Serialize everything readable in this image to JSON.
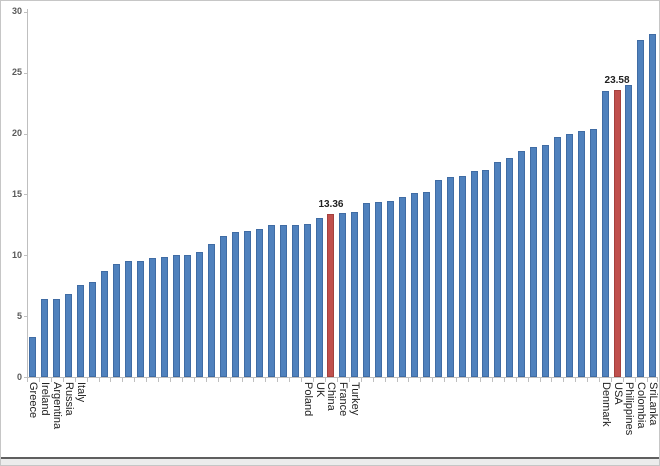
{
  "chart_data": {
    "type": "bar",
    "title": "",
    "xlabel": "",
    "ylabel": "",
    "ylim": [
      0,
      30
    ],
    "yticks": [
      "0",
      "5",
      "10",
      "15",
      "20",
      "25",
      "30"
    ],
    "grid": false,
    "legend": null,
    "bar_color": "#4f81bd",
    "highlight_color": "#c0504d",
    "bars": [
      {
        "label": "Greece",
        "value": 3.3
      },
      {
        "label": "Ireland",
        "value": 6.4
      },
      {
        "label": "Argentina",
        "value": 6.4
      },
      {
        "label": "Russia",
        "value": 6.8
      },
      {
        "label": "Italy",
        "value": 7.6
      },
      {
        "label": "",
        "value": 7.8
      },
      {
        "label": "",
        "value": 8.7
      },
      {
        "label": "",
        "value": 9.3
      },
      {
        "label": "",
        "value": 9.5
      },
      {
        "label": "",
        "value": 9.5
      },
      {
        "label": "",
        "value": 9.8
      },
      {
        "label": "",
        "value": 9.9
      },
      {
        "label": "",
        "value": 10.0
      },
      {
        "label": "",
        "value": 10.0
      },
      {
        "label": "",
        "value": 10.3
      },
      {
        "label": "",
        "value": 10.9
      },
      {
        "label": "",
        "value": 11.6
      },
      {
        "label": "",
        "value": 11.9
      },
      {
        "label": "",
        "value": 12.0
      },
      {
        "label": "",
        "value": 12.2
      },
      {
        "label": "",
        "value": 12.5
      },
      {
        "label": "",
        "value": 12.5
      },
      {
        "label": "",
        "value": 12.5
      },
      {
        "label": "Poland",
        "value": 12.6
      },
      {
        "label": "UK",
        "value": 13.1
      },
      {
        "label": "China",
        "value": 13.36,
        "highlight": true,
        "data_label": "13.36"
      },
      {
        "label": "France",
        "value": 13.5
      },
      {
        "label": "Turkey",
        "value": 13.6
      },
      {
        "label": "",
        "value": 14.3
      },
      {
        "label": "",
        "value": 14.4
      },
      {
        "label": "",
        "value": 14.5
      },
      {
        "label": "",
        "value": 14.8
      },
      {
        "label": "",
        "value": 15.1
      },
      {
        "label": "",
        "value": 15.2
      },
      {
        "label": "",
        "value": 16.2
      },
      {
        "label": "",
        "value": 16.4
      },
      {
        "label": "",
        "value": 16.5
      },
      {
        "label": "",
        "value": 16.9
      },
      {
        "label": "",
        "value": 17.0
      },
      {
        "label": "",
        "value": 17.7
      },
      {
        "label": "",
        "value": 18.0
      },
      {
        "label": "",
        "value": 18.6
      },
      {
        "label": "",
        "value": 18.9
      },
      {
        "label": "",
        "value": 19.1
      },
      {
        "label": "",
        "value": 19.7
      },
      {
        "label": "",
        "value": 20.0
      },
      {
        "label": "",
        "value": 20.2
      },
      {
        "label": "",
        "value": 20.4
      },
      {
        "label": "Denmark",
        "value": 23.5
      },
      {
        "label": "USA",
        "value": 23.58,
        "highlight": true,
        "data_label": "23.58"
      },
      {
        "label": "Philippines",
        "value": 24.0
      },
      {
        "label": "Colombia",
        "value": 27.7
      },
      {
        "label": "SriLanka",
        "value": 28.2
      }
    ]
  }
}
